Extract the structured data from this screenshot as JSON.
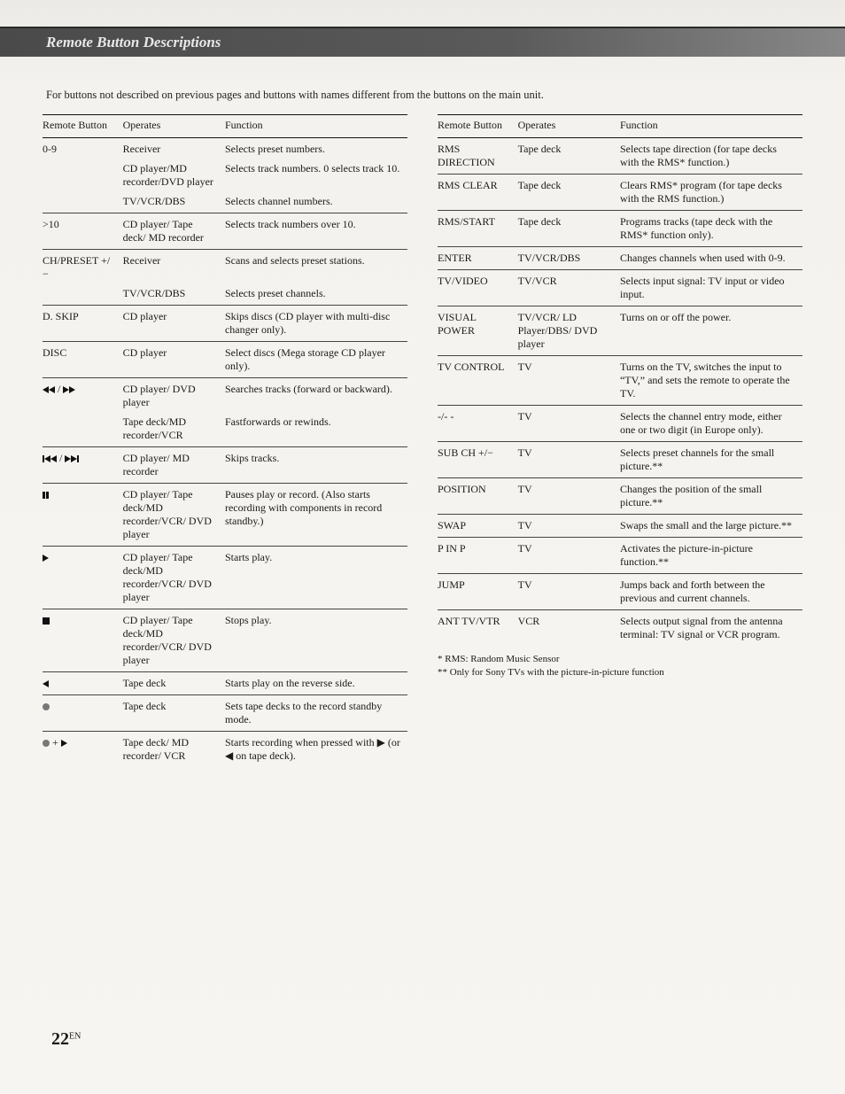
{
  "title": "Remote Button Descriptions",
  "intro": "For buttons not described on previous pages and buttons with names different from the buttons on the main unit.",
  "headers": {
    "button": "Remote Button",
    "operates": "Operates",
    "function": "Function"
  },
  "left_rows": [
    {
      "button": "0-9",
      "operates": "Receiver",
      "function": "Selects preset numbers."
    },
    {
      "sub": true,
      "button": "",
      "operates": "CD player/MD recorder/DVD player",
      "function": "Selects track numbers. 0 selects track 10."
    },
    {
      "sub": true,
      "button": "",
      "operates": "TV/VCR/DBS",
      "function": "Selects channel numbers."
    },
    {
      "button": ">10",
      "operates": "CD player/ Tape deck/ MD recorder",
      "function": "Selects track numbers over 10."
    },
    {
      "button": "CH/PRESET +/−",
      "operates": "Receiver",
      "function": "Scans and selects preset stations."
    },
    {
      "sub": true,
      "button": "",
      "operates": "TV/VCR/DBS",
      "function": "Selects preset channels."
    },
    {
      "button": "D. SKIP",
      "operates": "CD player",
      "function": "Skips discs (CD player with multi-disc changer only)."
    },
    {
      "button": "DISC",
      "operates": "CD player",
      "function": "Select discs (Mega storage CD player only)."
    },
    {
      "button": "icon:rewff",
      "operates": "CD player/ DVD player",
      "function": "Searches tracks (forward or backward)."
    },
    {
      "sub": true,
      "button": "",
      "operates": "Tape deck/MD recorder/VCR",
      "function": "Fastforwards or rewinds."
    },
    {
      "button": "icon:prevnext",
      "operates": "CD player/ MD recorder",
      "function": "Skips tracks."
    },
    {
      "button": "icon:pause",
      "operates": "CD player/ Tape deck/MD recorder/VCR/ DVD player",
      "function": "Pauses play or record. (Also starts recording with components in record standby.)"
    },
    {
      "button": "icon:play",
      "operates": "CD player/ Tape deck/MD recorder/VCR/ DVD player",
      "function": "Starts play."
    },
    {
      "button": "icon:stop",
      "operates": "CD player/ Tape deck/MD recorder/VCR/ DVD player",
      "function": "Stops play."
    },
    {
      "button": "icon:revplay",
      "operates": "Tape deck",
      "function": "Starts play on the reverse side."
    },
    {
      "button": "icon:rec",
      "operates": "Tape deck",
      "function": "Sets tape decks to the record standby mode."
    },
    {
      "button": "icon:recplay",
      "operates": "Tape deck/ MD recorder/ VCR",
      "function": "Starts recording when pressed with ▶ (or ◀ on tape deck)."
    }
  ],
  "right_rows": [
    {
      "button": "RMS DIRECTION",
      "operates": "Tape deck",
      "function": "Selects tape direction (for tape decks with the RMS* function.)"
    },
    {
      "button": "RMS CLEAR",
      "operates": "Tape deck",
      "function": "Clears RMS* program (for tape decks with the RMS function.)"
    },
    {
      "button": "RMS/START",
      "operates": "Tape deck",
      "function": "Programs tracks (tape deck with the RMS* function only)."
    },
    {
      "button": "ENTER",
      "operates": "TV/VCR/DBS",
      "function": "Changes channels when used with 0-9."
    },
    {
      "button": "TV/VIDEO",
      "operates": "TV/VCR",
      "function": "Selects input signal: TV input or video input."
    },
    {
      "button": "VISUAL POWER",
      "operates": "TV/VCR/ LD Player/DBS/ DVD player",
      "function": "Turns on or off the power."
    },
    {
      "button": "TV CONTROL",
      "operates": "TV",
      "function": "Turns on the TV, switches the input to “TV,” and sets the remote to operate the TV."
    },
    {
      "button": "-/- -",
      "operates": "TV",
      "function": "Selects the channel entry mode, either one or two digit (in Europe only)."
    },
    {
      "button": "SUB CH +/−",
      "operates": "TV",
      "function": "Selects preset channels for the small picture.**"
    },
    {
      "button": "POSITION",
      "operates": "TV",
      "function": "Changes the position of the small picture.**"
    },
    {
      "button": "SWAP",
      "operates": "TV",
      "function": "Swaps the small and the large picture.**"
    },
    {
      "button": "P IN P",
      "operates": "TV",
      "function": "Activates the picture-in-picture function.**"
    },
    {
      "button": "JUMP",
      "operates": "TV",
      "function": "Jumps back and forth between the previous and current channels."
    },
    {
      "button": "ANT TV/VTR",
      "operates": "VCR",
      "function": "Selects output signal from the antenna terminal: TV signal or VCR program."
    }
  ],
  "footnotes": {
    "f1": "*  RMS: Random Music Sensor",
    "f2": "** Only for Sony TVs with the picture-in-picture function"
  },
  "page": {
    "num": "22",
    "lang": "EN"
  }
}
